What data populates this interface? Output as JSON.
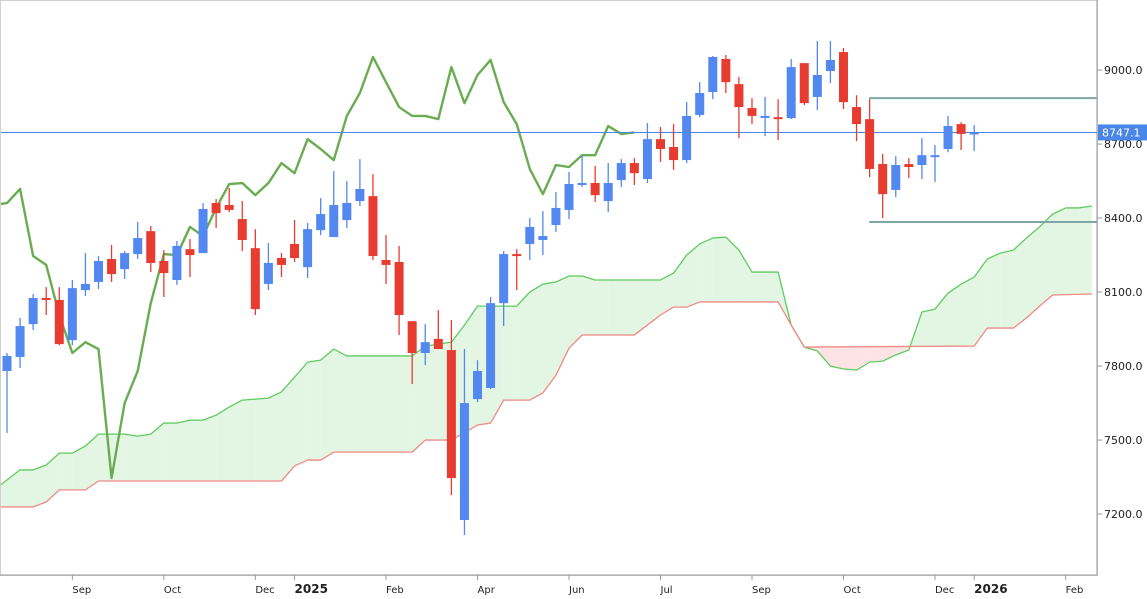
{
  "chart_data": {
    "type": "candlestick",
    "indicator": "ichimoku",
    "period": "weekly",
    "ylim": [
      6953,
      9284
    ],
    "y_ticks": [
      7200,
      7500,
      7800,
      8100,
      8400,
      8700,
      9000
    ],
    "y_tick_labels": [
      "7200.0",
      "7500.0",
      "7800.0",
      "8100.0",
      "8400.0",
      "8700.0",
      "9000.0"
    ],
    "x_ticks": [
      {
        "label": "Sep",
        "date": "2024-09-09",
        "year": false
      },
      {
        "label": "Oct",
        "date": "2024-10-28",
        "year": false
      },
      {
        "label": "Dec",
        "date": "2024-12-16",
        "year": false
      },
      {
        "label": "2025",
        "date": "2025-01-06",
        "year": true
      },
      {
        "label": "Feb",
        "date": "2025-02-24",
        "year": false
      },
      {
        "label": "Apr",
        "date": "2025-04-14",
        "year": false
      },
      {
        "label": "Jun",
        "date": "2025-06-02",
        "year": false
      },
      {
        "label": "Jul",
        "date": "2025-07-21",
        "year": false
      },
      {
        "label": "Sep",
        "date": "2025-09-08",
        "year": false
      },
      {
        "label": "Oct",
        "date": "2025-10-27",
        "year": false
      },
      {
        "label": "Dec",
        "date": "2025-12-15",
        "year": false
      },
      {
        "label": "2026",
        "date": "2026-01-05",
        "year": true
      },
      {
        "label": "Feb",
        "date": "2026-02-23",
        "year": false
      }
    ],
    "candles_fields": [
      "date",
      "open",
      "high",
      "low",
      "close"
    ],
    "candles": [
      [
        "2024-08-05",
        7780,
        7853,
        7529,
        7841
      ],
      [
        "2024-08-12",
        7837,
        7995,
        7792,
        7962
      ],
      [
        "2024-08-19",
        7970,
        8092,
        7946,
        8076
      ],
      [
        "2024-08-26",
        8076,
        8120,
        8007,
        8068
      ],
      [
        "2024-09-02",
        8068,
        8120,
        7885,
        7889
      ],
      [
        "2024-09-09",
        7905,
        8149,
        7885,
        8116
      ],
      [
        "2024-09-16",
        8108,
        8258,
        8084,
        8133
      ],
      [
        "2024-09-23",
        8141,
        8246,
        8112,
        8226
      ],
      [
        "2024-09-30",
        8234,
        8291,
        8141,
        8173
      ],
      [
        "2024-10-07",
        8193,
        8266,
        8153,
        8258
      ],
      [
        "2024-10-14",
        8254,
        8384,
        8234,
        8319
      ],
      [
        "2024-10-21",
        8347,
        8368,
        8181,
        8218
      ],
      [
        "2024-10-28",
        8226,
        8270,
        8080,
        8177
      ],
      [
        "2024-11-04",
        8149,
        8307,
        8129,
        8287
      ],
      [
        "2024-11-11",
        8274,
        8315,
        8161,
        8250
      ],
      [
        "2024-11-18",
        8258,
        8461,
        8258,
        8437
      ],
      [
        "2024-11-25",
        8461,
        8477,
        8360,
        8420
      ],
      [
        "2024-12-02",
        8453,
        8522,
        8424,
        8433
      ],
      [
        "2024-12-09",
        8396,
        8469,
        8266,
        8311
      ],
      [
        "2024-12-16",
        8278,
        8355,
        8007,
        8031
      ],
      [
        "2024-12-23",
        8133,
        8299,
        8108,
        8218
      ],
      [
        "2024-12-30",
        8238,
        8258,
        8161,
        8210
      ],
      [
        "2025-01-06",
        8295,
        8392,
        8222,
        8238
      ],
      [
        "2025-01-13",
        8201,
        8380,
        8157,
        8355
      ],
      [
        "2025-01-20",
        8351,
        8481,
        8331,
        8416
      ],
      [
        "2025-01-27",
        8323,
        8591,
        8323,
        8453
      ],
      [
        "2025-02-03",
        8392,
        8550,
        8360,
        8461
      ],
      [
        "2025-02-10",
        8469,
        8639,
        8449,
        8518
      ],
      [
        "2025-02-17",
        8489,
        8578,
        8230,
        8246
      ],
      [
        "2025-02-24",
        8230,
        8331,
        8133,
        8210
      ],
      [
        "2025-03-03",
        8222,
        8287,
        7926,
        8007
      ],
      [
        "2025-03-10",
        7982,
        7982,
        7727,
        7853
      ],
      [
        "2025-03-17",
        7853,
        7970,
        7804,
        7897
      ],
      [
        "2025-03-24",
        7910,
        8027,
        7869,
        7869
      ],
      [
        "2025-03-31",
        7865,
        7987,
        7277,
        7346
      ],
      [
        "2025-04-07",
        7176,
        7869,
        7115,
        7650
      ],
      [
        "2025-04-14",
        7666,
        7824,
        7654,
        7780
      ],
      [
        "2025-04-21",
        7711,
        8080,
        7707,
        8055
      ],
      [
        "2025-04-28",
        8055,
        8266,
        7962,
        8254
      ],
      [
        "2025-05-05",
        8254,
        8274,
        8108,
        8250
      ],
      [
        "2025-05-12",
        8295,
        8400,
        8230,
        8364
      ],
      [
        "2025-05-19",
        8311,
        8428,
        8250,
        8327
      ],
      [
        "2025-05-26",
        8372,
        8506,
        8343,
        8441
      ],
      [
        "2025-06-02",
        8433,
        8587,
        8396,
        8538
      ],
      [
        "2025-06-09",
        8538,
        8655,
        8526,
        8542
      ],
      [
        "2025-06-16",
        8542,
        8611,
        8465,
        8493
      ],
      [
        "2025-06-23",
        8469,
        8623,
        8424,
        8542
      ],
      [
        "2025-06-30",
        8554,
        8639,
        8526,
        8623
      ],
      [
        "2025-07-07",
        8623,
        8643,
        8534,
        8582
      ],
      [
        "2025-07-14",
        8558,
        8785,
        8542,
        8720
      ],
      [
        "2025-07-21",
        8720,
        8769,
        8627,
        8680
      ],
      [
        "2025-07-28",
        8688,
        8781,
        8595,
        8635
      ],
      [
        "2025-08-04",
        8635,
        8870,
        8623,
        8814
      ],
      [
        "2025-08-11",
        8818,
        8951,
        8809,
        8907
      ],
      [
        "2025-08-18",
        8911,
        9057,
        8882,
        9053
      ],
      [
        "2025-08-25",
        9045,
        9061,
        8907,
        8951
      ],
      [
        "2025-09-01",
        8943,
        8972,
        8724,
        8850
      ],
      [
        "2025-09-08",
        8846,
        8886,
        8781,
        8814
      ],
      [
        "2025-09-15",
        8809,
        8891,
        8732,
        8814
      ],
      [
        "2025-09-22",
        8809,
        8882,
        8716,
        8801
      ],
      [
        "2025-09-29",
        8805,
        9045,
        8801,
        9012
      ],
      [
        "2025-10-06",
        9028,
        9028,
        8858,
        8866
      ],
      [
        "2025-10-13",
        8891,
        9118,
        8838,
        8980
      ],
      [
        "2025-10-20",
        8996,
        9118,
        8947,
        9041
      ],
      [
        "2025-10-27",
        9073,
        9089,
        8842,
        8870
      ],
      [
        "2025-11-03",
        8850,
        8898,
        8712,
        8781
      ],
      [
        "2025-11-10",
        8801,
        8882,
        8566,
        8599
      ],
      [
        "2025-11-17",
        8619,
        8660,
        8400,
        8497
      ],
      [
        "2025-11-24",
        8514,
        8651,
        8485,
        8615
      ],
      [
        "2025-12-01",
        8619,
        8643,
        8562,
        8607
      ],
      [
        "2025-12-08",
        8615,
        8724,
        8558,
        8655
      ],
      [
        "2025-12-15",
        8651,
        8696,
        8546,
        8655
      ],
      [
        "2025-12-22",
        8680,
        8814,
        8667,
        8773
      ],
      [
        "2025-12-29",
        8781,
        8789,
        8676,
        8741
      ],
      [
        "2026-01-05",
        8745,
        8777,
        8672,
        8747.1
      ]
    ],
    "chikou_shift_periods": 26,
    "senkou_a": [
      [
        "2024-07-29",
        7298
      ],
      [
        "2024-08-12",
        7379
      ],
      [
        "2024-08-19",
        7379
      ],
      [
        "2024-08-26",
        7399
      ],
      [
        "2024-09-02",
        7447
      ],
      [
        "2024-09-09",
        7447
      ],
      [
        "2024-09-16",
        7476
      ],
      [
        "2024-09-23",
        7524
      ],
      [
        "2024-10-07",
        7524
      ],
      [
        "2024-10-14",
        7516
      ],
      [
        "2024-10-21",
        7524
      ],
      [
        "2024-10-28",
        7569
      ],
      [
        "2024-11-04",
        7569
      ],
      [
        "2024-11-11",
        7581
      ],
      [
        "2024-11-18",
        7581
      ],
      [
        "2024-11-25",
        7601
      ],
      [
        "2024-12-02",
        7634
      ],
      [
        "2024-12-09",
        7662
      ],
      [
        "2024-12-16",
        7666
      ],
      [
        "2024-12-23",
        7670
      ],
      [
        "2024-12-30",
        7695
      ],
      [
        "2025-01-06",
        7755
      ],
      [
        "2025-01-13",
        7816
      ],
      [
        "2025-01-20",
        7824
      ],
      [
        "2025-01-27",
        7869
      ],
      [
        "2025-02-03",
        7841
      ],
      [
        "2025-03-10",
        7841
      ],
      [
        "2025-03-17",
        7881
      ],
      [
        "2025-03-24",
        7889
      ],
      [
        "2025-03-31",
        7897
      ],
      [
        "2025-04-07",
        7966
      ],
      [
        "2025-04-14",
        8043
      ],
      [
        "2025-05-05",
        8043
      ],
      [
        "2025-05-12",
        8100
      ],
      [
        "2025-05-19",
        8132
      ],
      [
        "2025-05-26",
        8141
      ],
      [
        "2025-06-02",
        8165
      ],
      [
        "2025-06-09",
        8165
      ],
      [
        "2025-06-16",
        8149
      ],
      [
        "2025-07-21",
        8149
      ],
      [
        "2025-07-28",
        8177
      ],
      [
        "2025-08-04",
        8250
      ],
      [
        "2025-08-11",
        8295
      ],
      [
        "2025-08-18",
        8319
      ],
      [
        "2025-08-25",
        8323
      ],
      [
        "2025-09-01",
        8270
      ],
      [
        "2025-09-08",
        8181
      ],
      [
        "2025-09-22",
        8181
      ],
      [
        "2025-09-29",
        7966
      ],
      [
        "2025-10-06",
        7877
      ],
      [
        "2025-10-13",
        7861
      ],
      [
        "2025-10-20",
        7800
      ],
      [
        "2025-10-27",
        7788
      ],
      [
        "2025-11-03",
        7784
      ],
      [
        "2025-11-10",
        7816
      ],
      [
        "2025-11-17",
        7820
      ],
      [
        "2025-11-24",
        7845
      ],
      [
        "2025-12-01",
        7865
      ],
      [
        "2025-12-08",
        8019
      ],
      [
        "2025-12-15",
        8031
      ],
      [
        "2025-12-22",
        8096
      ],
      [
        "2025-12-29",
        8132
      ],
      [
        "2026-01-05",
        8161
      ],
      [
        "2026-01-12",
        8234
      ],
      [
        "2026-01-19",
        8258
      ],
      [
        "2026-01-26",
        8270
      ],
      [
        "2026-02-02",
        8319
      ],
      [
        "2026-02-09",
        8364
      ],
      [
        "2026-02-16",
        8416
      ],
      [
        "2026-02-23",
        8441
      ],
      [
        "2026-03-02",
        8441
      ],
      [
        "2026-03-09",
        8449
      ]
    ],
    "senkou_b": [
      [
        "2024-07-29",
        7229
      ],
      [
        "2024-08-19",
        7229
      ],
      [
        "2024-08-26",
        7249
      ],
      [
        "2024-09-02",
        7298
      ],
      [
        "2024-09-16",
        7298
      ],
      [
        "2024-09-23",
        7334
      ],
      [
        "2024-12-30",
        7334
      ],
      [
        "2025-01-06",
        7395
      ],
      [
        "2025-01-13",
        7419
      ],
      [
        "2025-01-20",
        7419
      ],
      [
        "2025-01-27",
        7451
      ],
      [
        "2025-03-10",
        7451
      ],
      [
        "2025-03-17",
        7500
      ],
      [
        "2025-03-31",
        7500
      ],
      [
        "2025-04-14",
        7561
      ],
      [
        "2025-04-21",
        7569
      ],
      [
        "2025-04-28",
        7662
      ],
      [
        "2025-05-12",
        7662
      ],
      [
        "2025-05-19",
        7691
      ],
      [
        "2025-05-26",
        7763
      ],
      [
        "2025-06-02",
        7873
      ],
      [
        "2025-06-09",
        7926
      ],
      [
        "2025-07-07",
        7926
      ],
      [
        "2025-07-21",
        8007
      ],
      [
        "2025-07-28",
        8039
      ],
      [
        "2025-08-04",
        8039
      ],
      [
        "2025-08-11",
        8060
      ],
      [
        "2025-09-22",
        8060
      ],
      [
        "2025-09-29",
        7966
      ],
      [
        "2025-10-06",
        7877
      ],
      [
        "2026-01-05",
        7881
      ],
      [
        "2026-01-12",
        7954
      ],
      [
        "2026-01-26",
        7954
      ],
      [
        "2026-02-02",
        7995
      ],
      [
        "2026-02-09",
        8043
      ],
      [
        "2026-02-16",
        8088
      ],
      [
        "2026-03-09",
        8092
      ]
    ],
    "horizontal_levels": [
      {
        "value": 8886,
        "from": "2025-11-10"
      },
      {
        "value": 8384,
        "from": "2025-11-10"
      }
    ],
    "last_price": 8747.1,
    "last_price_label": "8747.1",
    "grid": false,
    "colors": {
      "up": "#5288ef",
      "down": "#e83c31",
      "chikou": "#6aac52",
      "senkou_a": "#5fcc5f",
      "senkou_b": "#ef8a84",
      "cloud_bull": "#e3f6e3",
      "cloud_bear": "#fde3e3",
      "level": "#7fa5a6",
      "last_price": "#4a86e8",
      "axis": "#999999"
    }
  }
}
